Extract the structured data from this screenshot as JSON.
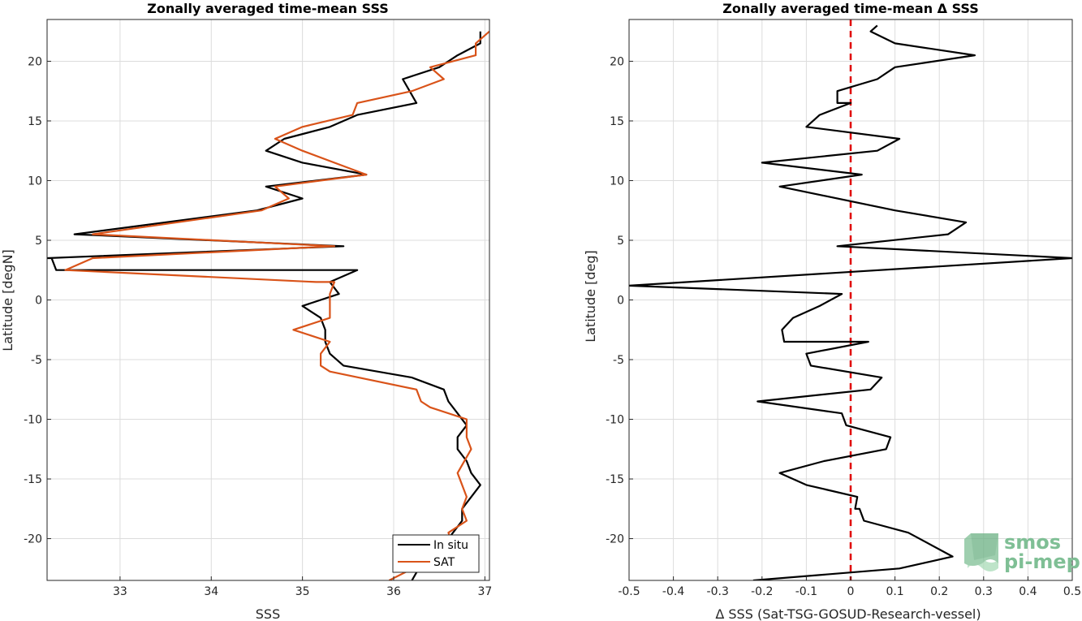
{
  "chart_data": [
    {
      "type": "line",
      "title": "Zonally averaged time-mean SSS",
      "xlabel": "SSS",
      "ylabel": "Latitude [degN]",
      "xlim": [
        32.2,
        37.05
      ],
      "ylim": [
        -23.5,
        23.5
      ],
      "xticks": [
        33,
        34,
        35,
        36,
        37
      ],
      "yticks": [
        -20,
        -15,
        -10,
        -5,
        0,
        5,
        10,
        15,
        20
      ],
      "grid": true,
      "legend": "bottom-right",
      "series": [
        {
          "name": "In situ",
          "color": "#000000",
          "x": [
            36.2,
            36.35,
            36.55,
            36.65,
            36.75,
            36.75,
            36.95,
            36.85,
            36.8,
            36.7,
            36.7,
            36.8,
            36.7,
            36.6,
            36.55,
            36.2,
            35.45,
            35.3,
            35.25,
            35.25,
            35.2,
            35.0,
            35.4,
            35.3,
            35.3,
            35.6,
            32.3,
            32.25,
            32.2,
            35.45,
            32.5,
            34.5,
            35.0,
            34.6,
            35.7,
            35.0,
            34.6,
            34.8,
            35.3,
            35.6,
            36.25,
            36.1,
            36.5,
            36.7,
            36.95,
            36.95
          ],
          "y": [
            -23.5,
            -21.5,
            -20.5,
            -19.5,
            -18.5,
            -17.5,
            -15.5,
            -14.5,
            -13.5,
            -12.5,
            -11.5,
            -10.5,
            -9.5,
            -8.5,
            -7.5,
            -6.5,
            -5.5,
            -4.5,
            -3.5,
            -2.5,
            -1.5,
            -0.5,
            0.5,
            1.5,
            1.5,
            2.5,
            2.5,
            3.5,
            3.5,
            4.5,
            5.5,
            7.5,
            8.5,
            9.5,
            10.5,
            11.5,
            12.5,
            13.5,
            14.5,
            15.5,
            16.5,
            18.5,
            19.5,
            20.5,
            21.5,
            22.5
          ]
        },
        {
          "name": "SAT",
          "color": "#D95319",
          "x": [
            35.95,
            36.6,
            36.65,
            36.6,
            36.8,
            36.75,
            36.8,
            36.7,
            36.85,
            36.8,
            36.8,
            36.8,
            36.4,
            36.3,
            36.25,
            35.3,
            35.2,
            35.2,
            35.3,
            34.9,
            35.3,
            35.3,
            35.3,
            35.35,
            35.15,
            32.4,
            32.7,
            35.35,
            32.7,
            34.55,
            34.85,
            34.7,
            35.7,
            35.0,
            34.7,
            35.0,
            35.55,
            35.6,
            36.2,
            36.55,
            36.4,
            36.9,
            36.9,
            37.05
          ],
          "y": [
            -23.5,
            -21.0,
            -20.5,
            -19.5,
            -18.5,
            -17.5,
            -16.5,
            -14.5,
            -12.5,
            -11.5,
            -10.5,
            -10.0,
            -9.0,
            -8.5,
            -7.5,
            -6.0,
            -5.5,
            -4.5,
            -3.5,
            -2.5,
            -1.5,
            -0.5,
            0.5,
            1.5,
            1.5,
            2.5,
            3.5,
            4.5,
            5.5,
            7.5,
            8.5,
            9.5,
            10.5,
            12.5,
            13.5,
            14.5,
            15.5,
            16.5,
            17.5,
            18.5,
            19.5,
            20.5,
            21.5,
            22.5
          ]
        }
      ]
    },
    {
      "type": "line",
      "title": "Zonally averaged time-mean Δ SSS",
      "xlabel": "Δ SSS (Sat-TSG-GOSUD-Research-vessel)",
      "ylabel": "Latitude [deg]",
      "xlim": [
        -0.5,
        0.5
      ],
      "ylim": [
        -23.5,
        23.5
      ],
      "xticks": [
        -0.5,
        -0.4,
        -0.3,
        -0.2,
        -0.1,
        0,
        0.1,
        0.2,
        0.3,
        0.4,
        0.5
      ],
      "xticklabels": [
        "-0.5",
        "-0.4",
        "-0.3",
        "-0.2",
        "-0.1",
        "0",
        "0.1",
        "0.2",
        "0.3",
        "0.4",
        "0.5"
      ],
      "yticks": [
        -20,
        -15,
        -10,
        -5,
        0,
        5,
        10,
        15,
        20
      ],
      "grid": true,
      "reference_line": {
        "x": 0,
        "color": "#E00000",
        "style": "dashed"
      },
      "series": [
        {
          "name": "",
          "color": "#000000",
          "x": [
            -0.22,
            0.11,
            0.23,
            0.13,
            0.03,
            0.02,
            0.01,
            0.015,
            -0.1,
            -0.16,
            -0.06,
            0.08,
            0.09,
            -0.01,
            -0.02,
            -0.21,
            0.045,
            0.07,
            -0.09,
            -0.1,
            0.04,
            -0.15,
            -0.155,
            -0.13,
            -0.07,
            -0.02,
            -0.5,
            0.5,
            -0.03,
            0.22,
            0.26,
            0.1,
            -0.16,
            0.025,
            -0.2,
            0.06,
            0.11,
            -0.1,
            -0.07,
            0.0,
            -0.03,
            -0.03,
            0.06,
            0.1,
            0.28,
            0.1,
            0.045,
            0.06
          ],
          "y": [
            -23.5,
            -22.5,
            -21.5,
            -19.5,
            -18.5,
            -17.5,
            -17.5,
            -16.5,
            -15.5,
            -14.5,
            -13.5,
            -12.5,
            -11.5,
            -10.5,
            -9.5,
            -8.5,
            -7.5,
            -6.5,
            -5.5,
            -4.5,
            -3.5,
            -3.5,
            -2.5,
            -1.5,
            -0.5,
            0.5,
            1.2,
            3.5,
            4.5,
            5.5,
            6.5,
            7.5,
            9.5,
            10.5,
            11.5,
            12.5,
            13.5,
            14.5,
            15.5,
            16.5,
            16.5,
            17.5,
            18.5,
            19.5,
            20.5,
            21.5,
            22.5,
            23.0
          ]
        }
      ]
    }
  ],
  "logo": {
    "line1": "smos",
    "line2": "pi-mep",
    "color": "#7FBF95"
  }
}
